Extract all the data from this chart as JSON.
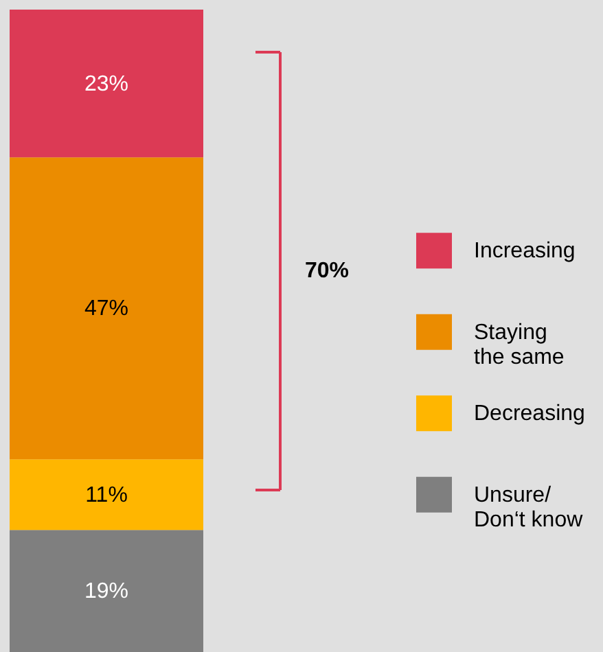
{
  "chart_data": {
    "type": "bar",
    "stacked": true,
    "categories": [
      null
    ],
    "ylim": [
      0,
      100
    ],
    "tick_labels": false,
    "legend": "right",
    "series": [
      {
        "name": "Unsure/\nDon‘t know",
        "color": "#7f7f7f",
        "values": [
          19
        ],
        "value_labels": [
          "19%"
        ]
      },
      {
        "name": "Decreasing",
        "color": "#ffb600",
        "values": [
          11
        ],
        "value_labels": [
          "11%"
        ]
      },
      {
        "name": "Staying\nthe same",
        "color": "#eb8c00",
        "values": [
          47
        ],
        "value_labels": [
          "47%"
        ]
      },
      {
        "name": "Increasing",
        "color": "#dc3a55",
        "values": [
          23
        ],
        "value_labels": [
          "23%"
        ]
      }
    ],
    "annotations": [
      "70%"
    ]
  }
}
